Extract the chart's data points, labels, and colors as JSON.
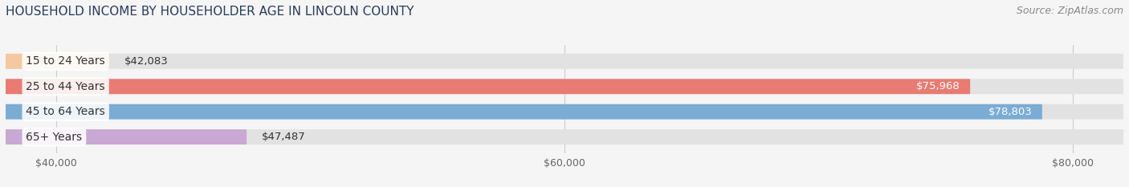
{
  "title": "HOUSEHOLD INCOME BY HOUSEHOLDER AGE IN LINCOLN COUNTY",
  "source": "Source: ZipAtlas.com",
  "categories": [
    "15 to 24 Years",
    "25 to 44 Years",
    "45 to 64 Years",
    "65+ Years"
  ],
  "values": [
    42083,
    75968,
    78803,
    47487
  ],
  "bar_colors": [
    "#f5c9a0",
    "#e87b72",
    "#7bacd4",
    "#c9a8d4"
  ],
  "xlim": [
    38000,
    82000
  ],
  "xticks": [
    40000,
    60000,
    80000
  ],
  "xtick_labels": [
    "$40,000",
    "$60,000",
    "$80,000"
  ],
  "background_color": "#f5f5f5",
  "bar_background_color": "#e2e2e2",
  "title_fontsize": 11,
  "source_fontsize": 9,
  "label_fontsize": 10,
  "value_fontsize": 9.5,
  "bar_height": 0.6,
  "figsize": [
    14.06,
    2.33
  ],
  "dpi": 100
}
